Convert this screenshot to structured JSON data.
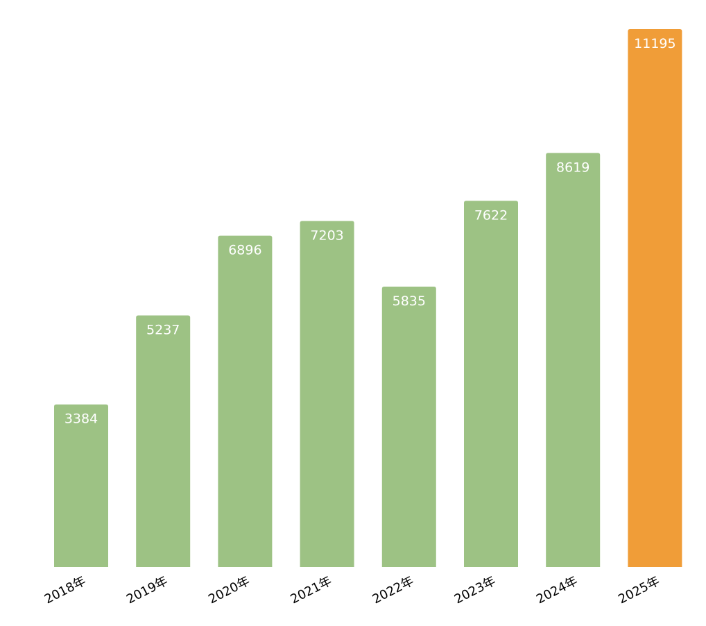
{
  "chart_data": {
    "type": "bar",
    "categories": [
      "2018年",
      "2019年",
      "2020年",
      "2021年",
      "2022年",
      "2023年",
      "2024年",
      "2025年"
    ],
    "values": [
      3384,
      5237,
      6896,
      7203,
      5835,
      7622,
      8619,
      11195
    ],
    "data_labels": [
      "3384",
      "5237",
      "6896",
      "7203",
      "5835",
      "7622",
      "8619",
      "11195"
    ],
    "ylim": [
      0,
      11195
    ],
    "grid": false,
    "legend": "none",
    "y_axis_visible": false,
    "x_tick_rotation": "angled",
    "colors": {
      "bar": "#9dc284",
      "highlight": "#f09d38",
      "value_label": "#ffffff",
      "tick_label": "#000000"
    },
    "highlight_index": 7
  }
}
